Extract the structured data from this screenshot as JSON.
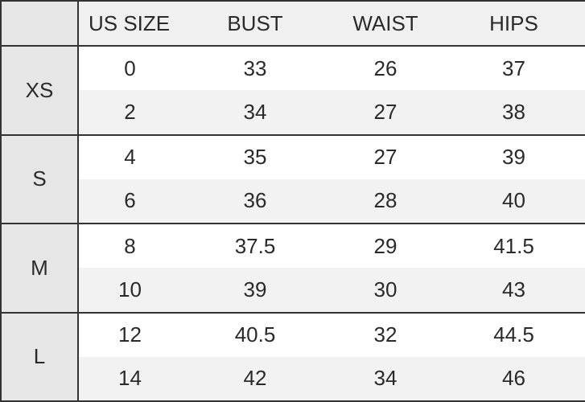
{
  "headers": [
    "",
    "US SIZE",
    "BUST",
    "WAIST",
    "HIPS"
  ],
  "groups": [
    {
      "size": "XS",
      "rows": [
        [
          "0",
          "33",
          "26",
          "37"
        ],
        [
          "2",
          "34",
          "27",
          "38"
        ]
      ]
    },
    {
      "size": "S",
      "rows": [
        [
          "4",
          "35",
          "27",
          "39"
        ],
        [
          "6",
          "36",
          "28",
          "40"
        ]
      ]
    },
    {
      "size": "M",
      "rows": [
        [
          "8",
          "37.5",
          "29",
          "41.5"
        ],
        [
          "10",
          "39",
          "30",
          "43"
        ]
      ]
    },
    {
      "size": "L",
      "rows": [
        [
          "12",
          "40.5",
          "32",
          "44.5"
        ],
        [
          "14",
          "42",
          "34",
          "46"
        ]
      ]
    }
  ],
  "colors": {
    "border": "#333333",
    "size_column_bg": "#e6e6e6",
    "alt_row_bg": "#f2f2f2",
    "header_bg": "#f0f0f0"
  }
}
